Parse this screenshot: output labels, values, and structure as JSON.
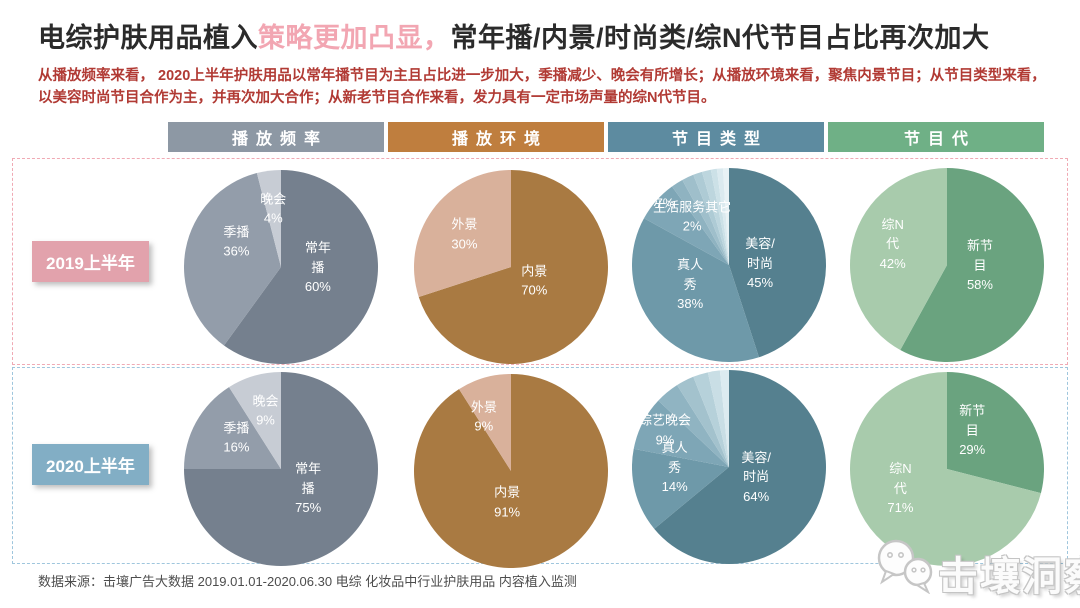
{
  "title": {
    "part1": "电综护肤用品植入",
    "highlight": "策略更加凸显，",
    "part2": "常年播/内景/时尚类/综N代节目占比再次加大"
  },
  "subtitle": "从播放频率来看， 2020上半年护肤用品以常年播节目为主且占比进一步加大，季播减少、晚会有所增长；从播放环境来看，聚焦内景节目；从节目类型来看，以美容时尚节目合作为主，并再次加大合作；从新老节目合作来看，发力具有一定市场声量的综N代节目。",
  "column_headers": [
    {
      "label": "播放频率",
      "color": "#8d98a4"
    },
    {
      "label": "播放环境",
      "color": "#bf7e3e"
    },
    {
      "label": "节目类型",
      "color": "#5d8ba0"
    },
    {
      "label": "节目代",
      "color": "#6fb086"
    }
  ],
  "rows": [
    {
      "label": "2019上半年",
      "badge_color": "#e2a2ac",
      "border_color": "#f0aab4"
    },
    {
      "label": "2020上半年",
      "badge_color": "#82aec5",
      "border_color": "#9fc6dd"
    }
  ],
  "footer": {
    "source": "数据来源：击壤广告大数据 2019.01.01-2020.06.30 电综 化妆品中行业护肤用品 内容植入监测"
  },
  "watermark": {
    "text": "击壤洞察",
    "icon": "chat-bubbles-icon"
  },
  "chart_data": [
    {
      "type": "pie",
      "row": "2019上半年",
      "title": "播放频率",
      "slices": [
        {
          "label": "常年播",
          "value": 60,
          "color": "#75808e",
          "text": [
            "常年",
            "播",
            "60%"
          ],
          "pos": [
            0.69,
            0.5
          ]
        },
        {
          "label": "季播",
          "value": 36,
          "color": "#939daa",
          "text": [
            "季播",
            "36%"
          ],
          "pos": [
            0.27,
            0.37
          ]
        },
        {
          "label": "晚会",
          "value": 4,
          "color": "#c7ccd4",
          "text": [
            "晚会",
            "4%"
          ],
          "pos": [
            0.46,
            0.2
          ]
        }
      ]
    },
    {
      "type": "pie",
      "row": "2019上半年",
      "title": "播放环境",
      "slices": [
        {
          "label": "内景",
          "value": 70,
          "color": "#a97a42",
          "text": [
            "内景",
            "70%"
          ],
          "pos": [
            0.62,
            0.57
          ]
        },
        {
          "label": "外景",
          "value": 30,
          "color": "#d9b19b",
          "text": [
            "外景",
            "30%"
          ],
          "pos": [
            0.26,
            0.33
          ]
        }
      ]
    },
    {
      "type": "pie",
      "row": "2019上半年",
      "title": "节目类型",
      "slices": [
        {
          "label": "美容/时尚",
          "value": 45,
          "color": "#55808f",
          "text": [
            "美容/",
            "时尚",
            "45%"
          ],
          "pos": [
            0.66,
            0.49
          ]
        },
        {
          "label": "真人秀",
          "value": 38,
          "color": "#6e99a9",
          "text": [
            "真人",
            "秀",
            "38%"
          ],
          "pos": [
            0.3,
            0.6
          ]
        },
        {
          "label": "",
          "value": 7,
          "color": "#7ea6b6",
          "text": [
            "7%"
          ],
          "pos": [
            0.17,
            0.18
          ]
        },
        {
          "label": "生活服务其它",
          "value": 2,
          "color": "#8fb3c1",
          "text": [
            "生活服务其它",
            "2%"
          ],
          "pos": [
            0.31,
            0.25
          ]
        },
        {
          "label": "",
          "value": 2,
          "color": "#9fbfcb"
        },
        {
          "label": "",
          "value": 1.5,
          "color": "#aecbd5"
        },
        {
          "label": "",
          "value": 1.5,
          "color": "#bdd6de"
        },
        {
          "label": "",
          "value": 1,
          "color": "#cce1e7"
        },
        {
          "label": "",
          "value": 1,
          "color": "#dbeaef"
        },
        {
          "label": "",
          "value": 1,
          "color": "#e8f2f5"
        }
      ]
    },
    {
      "type": "pie",
      "row": "2019上半年",
      "title": "节目代",
      "slices": [
        {
          "label": "新节目",
          "value": 58,
          "color": "#6aa37f",
          "text": [
            "新节",
            "目",
            "58%"
          ],
          "pos": [
            0.67,
            0.5
          ]
        },
        {
          "label": "综N代",
          "value": 42,
          "color": "#a8cbac",
          "text": [
            "综N",
            "代",
            "42%"
          ],
          "pos": [
            0.22,
            0.39
          ]
        }
      ]
    },
    {
      "type": "pie",
      "row": "2020上半年",
      "title": "播放频率",
      "slices": [
        {
          "label": "常年播",
          "value": 75,
          "color": "#75808e",
          "text": [
            "常年",
            "播",
            "75%"
          ],
          "pos": [
            0.64,
            0.6
          ]
        },
        {
          "label": "季播",
          "value": 16,
          "color": "#939daa",
          "text": [
            "季播",
            "16%"
          ],
          "pos": [
            0.27,
            0.34
          ]
        },
        {
          "label": "晚会",
          "value": 9,
          "color": "#c7ccd4",
          "text": [
            "晚会",
            "9%"
          ],
          "pos": [
            0.42,
            0.2
          ]
        }
      ]
    },
    {
      "type": "pie",
      "row": "2020上半年",
      "title": "播放环境",
      "slices": [
        {
          "label": "内景",
          "value": 91,
          "color": "#a97a42",
          "text": [
            "内景",
            "91%"
          ],
          "pos": [
            0.48,
            0.66
          ]
        },
        {
          "label": "外景",
          "value": 9,
          "color": "#d9b19b",
          "text": [
            "外景",
            "9%"
          ],
          "pos": [
            0.36,
            0.22
          ]
        }
      ]
    },
    {
      "type": "pie",
      "row": "2020上半年",
      "title": "节目类型",
      "slices": [
        {
          "label": "美容/时尚",
          "value": 64,
          "color": "#55808f",
          "text": [
            "美容/",
            "时尚",
            "64%"
          ],
          "pos": [
            0.64,
            0.55
          ]
        },
        {
          "label": "真人秀",
          "value": 14,
          "color": "#6e99a9",
          "text": [
            "真人",
            "秀",
            "14%"
          ],
          "pos": [
            0.22,
            0.5
          ]
        },
        {
          "label": "综艺晚会",
          "value": 9,
          "color": "#7ea6b6",
          "text": [
            "综艺晚会",
            "9%"
          ],
          "pos": [
            0.17,
            0.31
          ]
        },
        {
          "label": "",
          "value": 4,
          "color": "#90b4c2"
        },
        {
          "label": "",
          "value": 3,
          "color": "#a3c2cd"
        },
        {
          "label": "",
          "value": 2.5,
          "color": "#b6d1da"
        },
        {
          "label": "",
          "value": 2,
          "color": "#c9dee5"
        },
        {
          "label": "",
          "value": 1.5,
          "color": "#dcebf0"
        }
      ]
    },
    {
      "type": "pie",
      "row": "2020上半年",
      "title": "节目代",
      "slices": [
        {
          "label": "新节目",
          "value": 29,
          "color": "#6aa37f",
          "text": [
            "新节",
            "目",
            "29%"
          ],
          "pos": [
            0.63,
            0.3
          ]
        },
        {
          "label": "综N代",
          "value": 71,
          "color": "#a8cbac",
          "text": [
            "综N",
            "代",
            "71%"
          ],
          "pos": [
            0.26,
            0.6
          ]
        }
      ]
    }
  ]
}
